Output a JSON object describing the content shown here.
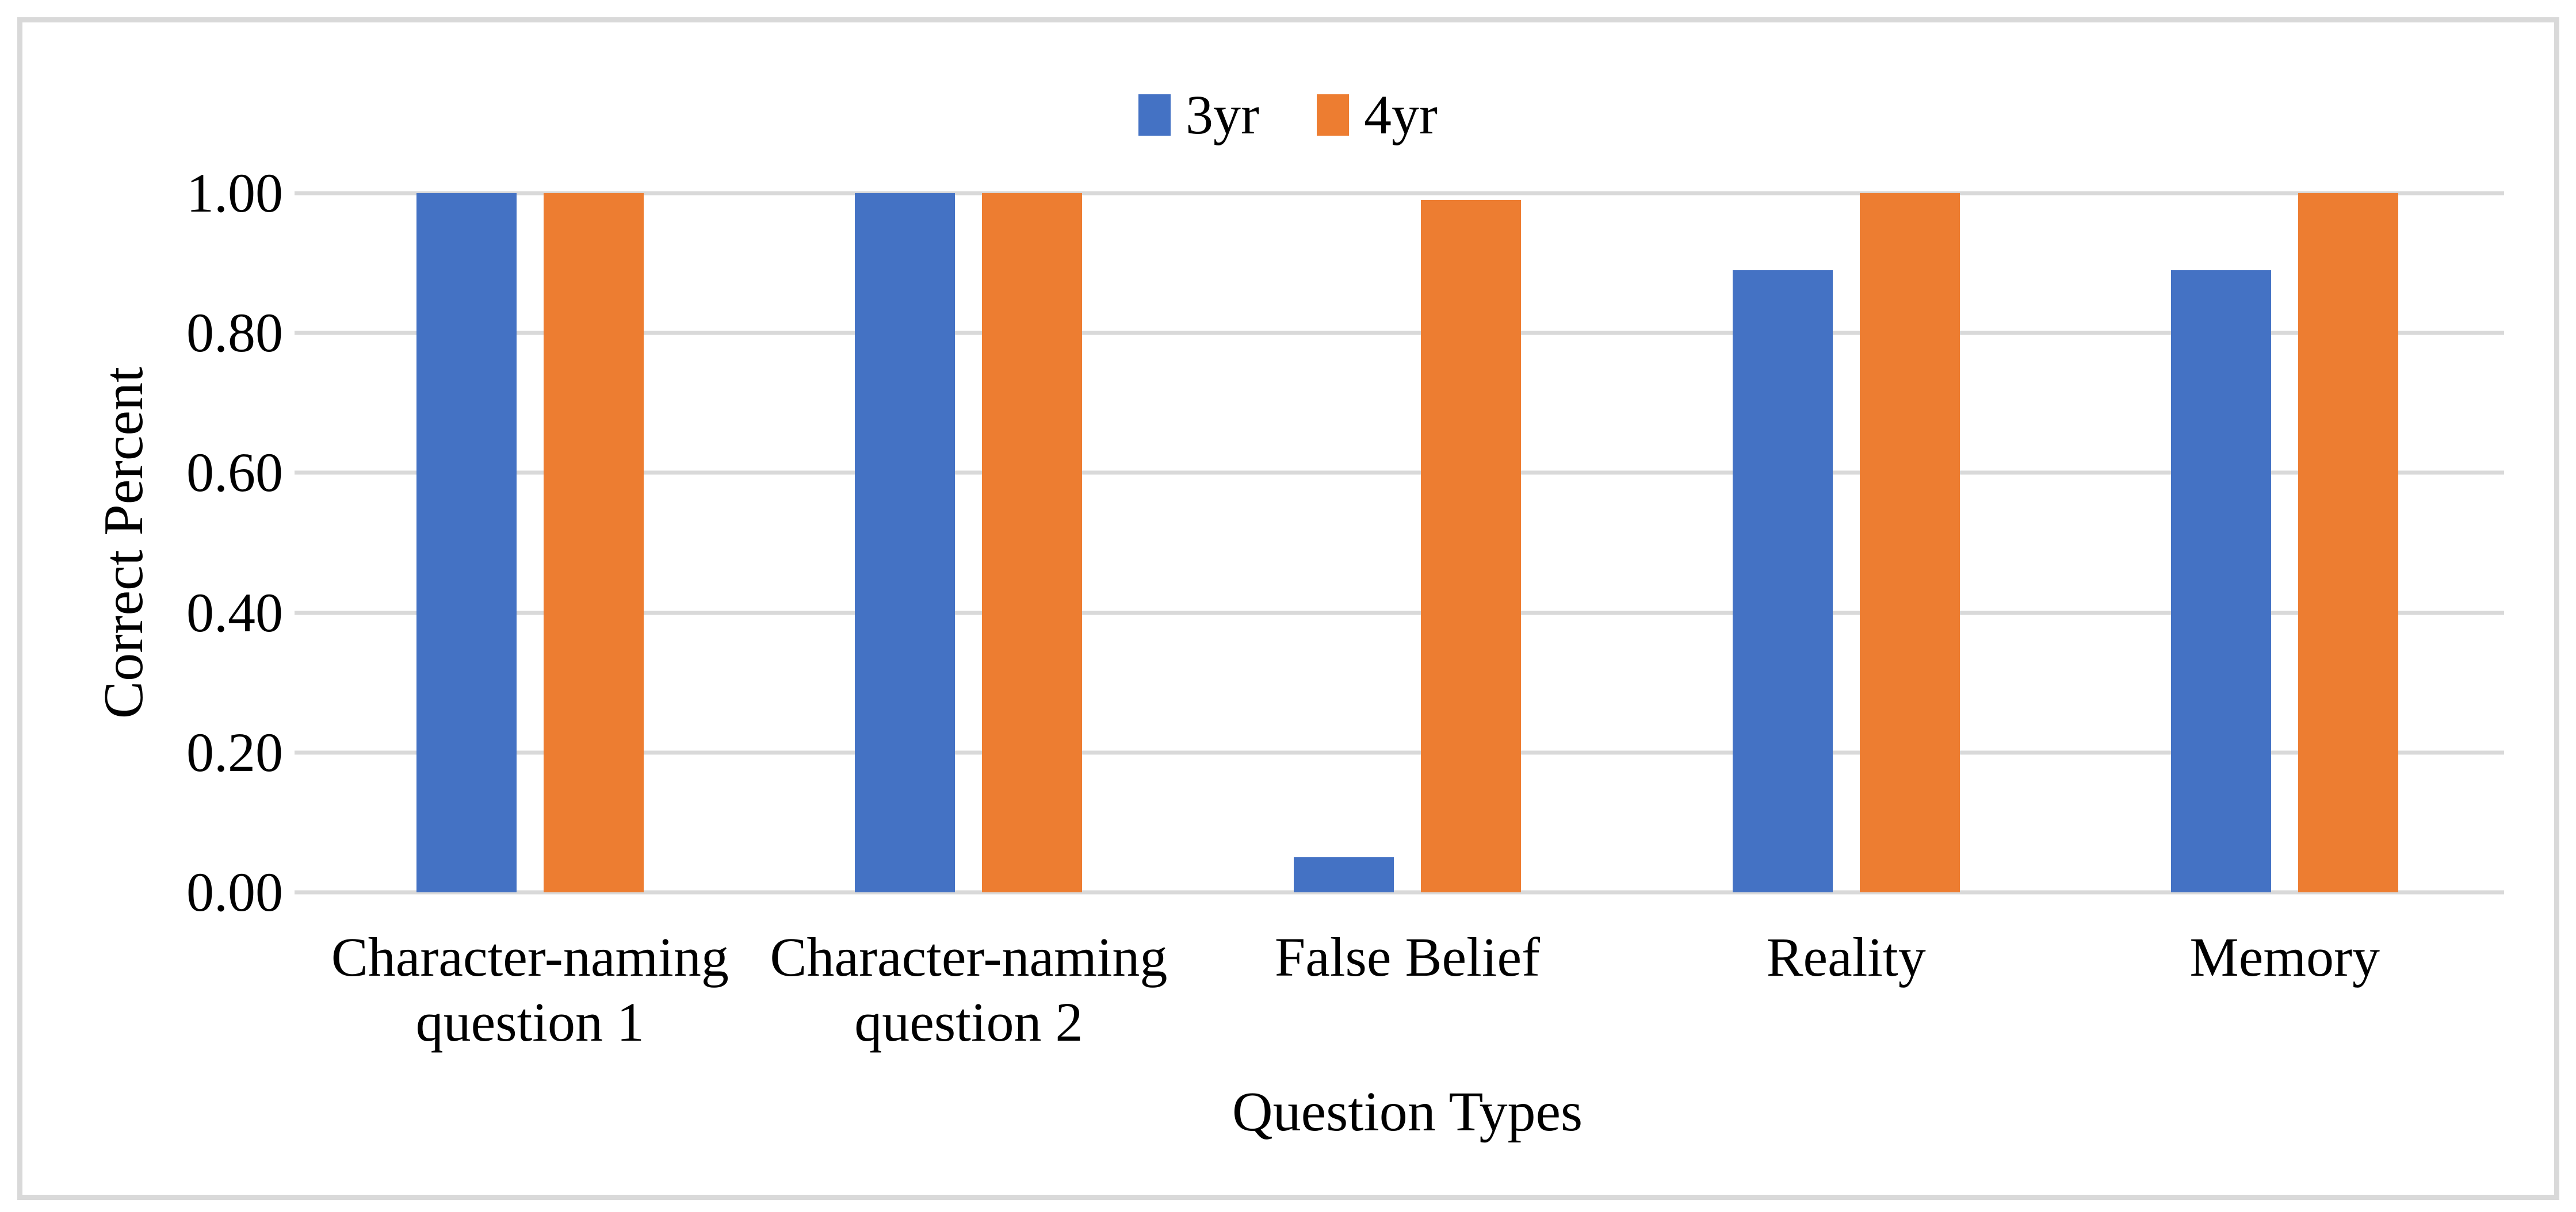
{
  "figure": {
    "background_color": "#FFFFFF",
    "border_color": "#D9D9D9"
  },
  "chart_data": {
    "type": "bar",
    "title": "",
    "xlabel": "Question Types",
    "ylabel": "Correct Percent",
    "categories": [
      "Character-naming question 1",
      "Character-naming question 2",
      "False Belief",
      "Reality",
      "Memory"
    ],
    "series": [
      {
        "name": "3yr",
        "color": "#4472C4",
        "values": [
          1.0,
          1.0,
          0.05,
          0.89,
          0.89
        ]
      },
      {
        "name": "4yr",
        "color": "#ED7D31",
        "values": [
          1.0,
          1.0,
          0.99,
          1.0,
          1.0
        ]
      }
    ],
    "ylim": [
      0,
      1
    ],
    "yticks": [
      0,
      0.2,
      0.4,
      0.6,
      0.8,
      1.0
    ],
    "ytick_labels": [
      "0.00",
      "0.20",
      "0.40",
      "0.60",
      "0.80",
      "1.00"
    ],
    "grid": "horizontal",
    "gridline_color": "#D9D9D9",
    "legend_position": "top-center",
    "legend_entries": [
      "3yr",
      "4yr"
    ]
  }
}
